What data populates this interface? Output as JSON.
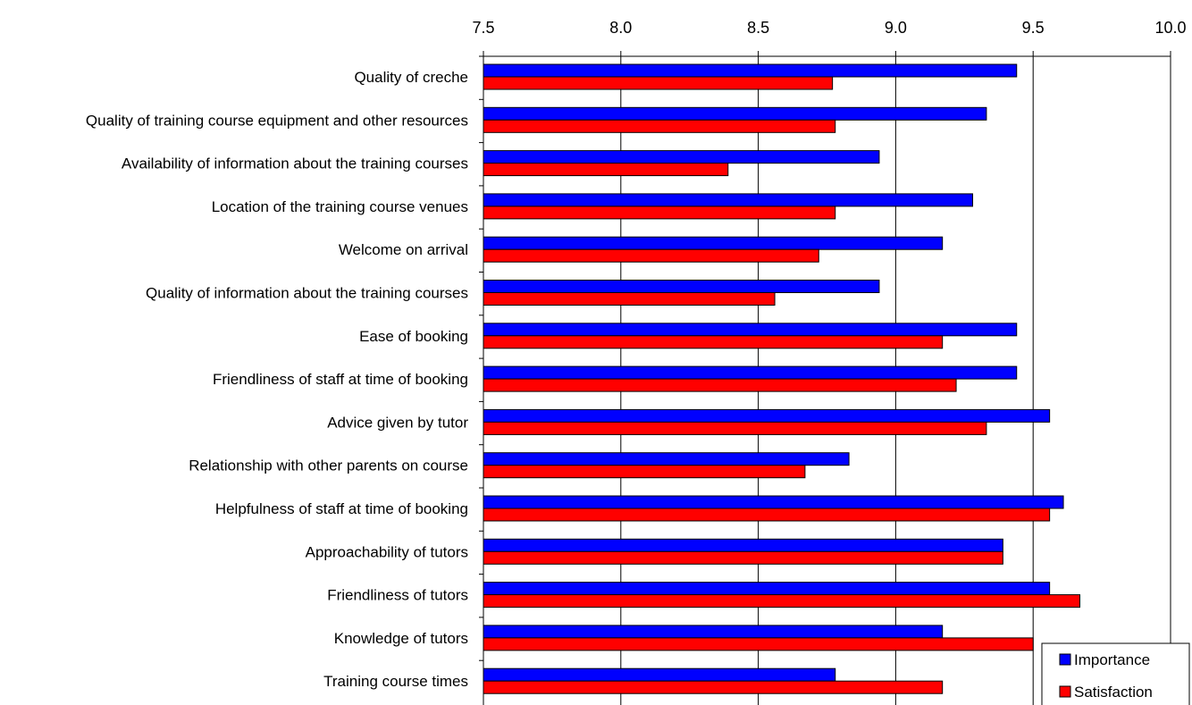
{
  "chart_data": {
    "type": "bar",
    "orientation": "horizontal",
    "xlim": [
      7.5,
      10.0
    ],
    "x_ticks": [
      "7.5",
      "8.0",
      "8.5",
      "9.0",
      "9.5",
      "10.0"
    ],
    "x_tick_values": [
      7.5,
      8.0,
      8.5,
      9.0,
      9.5,
      10.0
    ],
    "grid": "vertical",
    "legend_position": "bottom-right",
    "categories": [
      "Quality of creche",
      "Quality of training course equipment and other resources",
      "Availability of information about the training courses",
      "Location of the training course venues",
      "Welcome on arrival",
      "Quality of information about the training courses",
      "Ease of booking",
      "Friendliness of staff at time of booking",
      "Advice given by tutor",
      "Relationship with other parents on course",
      "Helpfulness of staff at time of booking",
      "Approachability of tutors",
      "Friendliness of tutors",
      "Knowledge of tutors",
      "Training course times"
    ],
    "series": [
      {
        "name": "Importance",
        "color": "#0000ff",
        "values": [
          9.44,
          9.33,
          8.94,
          9.28,
          9.17,
          8.94,
          9.44,
          9.44,
          9.56,
          8.83,
          9.61,
          9.39,
          9.56,
          9.17,
          8.78
        ]
      },
      {
        "name": "Satisfaction",
        "color": "#ff0000",
        "values": [
          8.77,
          8.78,
          8.39,
          8.78,
          8.72,
          8.56,
          9.17,
          9.22,
          9.33,
          8.67,
          9.56,
          9.39,
          9.67,
          9.5,
          9.17
        ]
      }
    ]
  }
}
